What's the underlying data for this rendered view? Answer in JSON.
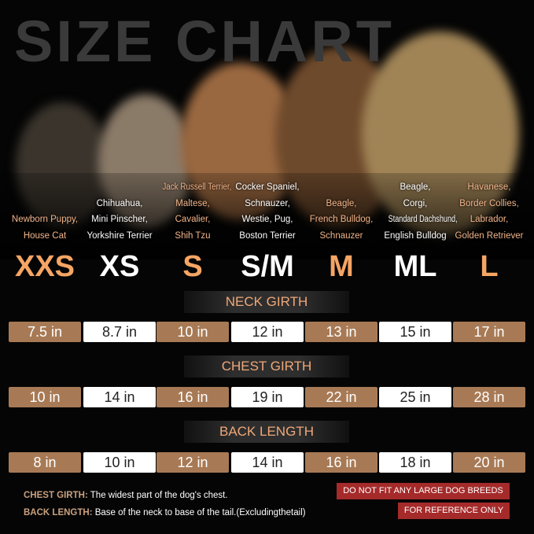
{
  "title": "SIZE CHART",
  "sizes": [
    {
      "label": "XXS",
      "breeds": [
        "Newborn Puppy,",
        "House Cat"
      ],
      "neck": "7.5 in",
      "chest": "10 in",
      "back": "8 in"
    },
    {
      "label": "XS",
      "breeds": [
        "Chihuahua,",
        "Mini Pinscher,",
        "Yorkshire Terrier"
      ],
      "neck": "8.7 in",
      "chest": "14 in",
      "back": "10 in"
    },
    {
      "label": "S",
      "breeds": [
        "Jack Russell Terrier,",
        "Maltese,",
        "Cavalier,",
        "Shih Tzu"
      ],
      "neck": "10 in",
      "chest": "16 in",
      "back": "12 in"
    },
    {
      "label": "S/M",
      "breeds": [
        "Cocker Spaniel,",
        "Schnauzer,",
        "Westie, Pug,",
        "Boston Terrier"
      ],
      "neck": "12 in",
      "chest": "19 in",
      "back": "14 in"
    },
    {
      "label": "M",
      "breeds": [
        "Beagle,",
        "French Bulldog,",
        "Schnauzer"
      ],
      "neck": "13 in",
      "chest": "22 in",
      "back": "16 in"
    },
    {
      "label": "ML",
      "breeds": [
        "Beagle,",
        "Corgi,",
        "Standard Dachshund,",
        "English Bulldog"
      ],
      "neck": "15 in",
      "chest": "25 in",
      "back": "18 in"
    },
    {
      "label": "L",
      "breeds": [
        "Havanese,",
        "Border Collies,",
        "Labrador,",
        "Golden Retriever"
      ],
      "neck": "17 in",
      "chest": "28 in",
      "back": "20 in"
    }
  ],
  "headers": {
    "neck": "NECK GIRTH",
    "chest": "CHEST GIRTH",
    "back": "BACK LENGTH"
  },
  "notes": {
    "chest_label": "CHEST GIRTH:",
    "chest_text": "The widest part of the dog's chest.",
    "back_label": "BACK LENGTH:",
    "back_text": "Base of the neck to base of the tail.(Excludingthetail)"
  },
  "warnings": [
    "DO NOT FIT ANY LARGE DOG BREEDS",
    "FOR REFERENCE ONLY"
  ],
  "colors": {
    "accent": "#f5a564",
    "box_brown": "#a77a55",
    "warning": "#a52a2a"
  }
}
